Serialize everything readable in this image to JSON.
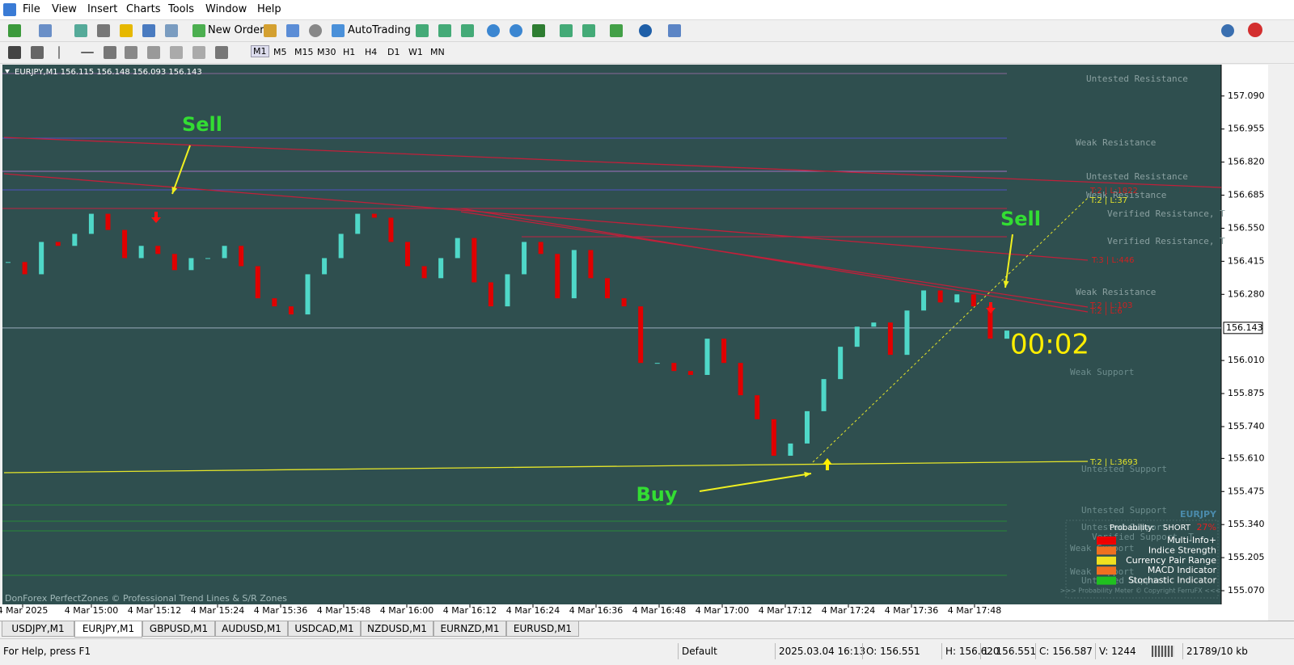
{
  "menu": [
    "File",
    "View",
    "Insert",
    "Charts",
    "Tools",
    "Window",
    "Help"
  ],
  "toolbar": {
    "new_order": "New Order",
    "autotrading": "AutoTrading",
    "timeframes": [
      "M1",
      "M5",
      "M15",
      "M30",
      "H1",
      "H4",
      "D1",
      "W1",
      "MN"
    ]
  },
  "chart_data": {
    "type": "candlestick",
    "title": "EURJPY,M1 156.115 156.148 156.093 156.143",
    "x_labels": [
      "4 Mar 2025",
      "4 Mar 15:00",
      "4 Mar 15:12",
      "4 Mar 15:24",
      "4 Mar 15:36",
      "4 Mar 15:48",
      "4 Mar 16:00",
      "4 Mar 16:12",
      "4 Mar 16:24",
      "4 Mar 16:36",
      "4 Mar 16:48",
      "4 Mar 17:00",
      "4 Mar 17:12",
      "4 Mar 17:24",
      "4 Mar 17:36",
      "4 Mar 17:48"
    ],
    "closes": [
      156.412,
      156.362,
      156.494,
      156.478,
      156.527,
      156.609,
      156.543,
      156.428,
      156.478,
      156.445,
      156.379,
      156.428,
      156.428,
      156.478,
      156.395,
      156.264,
      156.231,
      156.198,
      156.362,
      156.428,
      156.527,
      156.609,
      156.593,
      156.494,
      156.395,
      156.346,
      156.428,
      156.51,
      156.329,
      156.231,
      156.362,
      156.494,
      156.445,
      156.264,
      156.461,
      156.346,
      156.264,
      156.231,
      156.0,
      156.0,
      155.967,
      155.951,
      156.099,
      156.0,
      155.868,
      155.77,
      155.621,
      155.671,
      155.803,
      155.934,
      156.066,
      156.148,
      156.165,
      156.033,
      156.214,
      156.296,
      156.247,
      156.28,
      156.231,
      156.099,
      156.132
    ],
    "up_color": "#4fd8c8",
    "down_color": "#e00000",
    "ylim": [
      155.014,
      157.218
    ],
    "yticks": [
      {
        "value": 157.09,
        "label": "157.090"
      },
      {
        "value": 156.955,
        "label": "156.955"
      },
      {
        "value": 156.82,
        "label": "156.820"
      },
      {
        "value": 156.685,
        "label": "156.685"
      },
      {
        "value": 156.55,
        "label": "156.550"
      },
      {
        "value": 156.415,
        "label": "156.415"
      },
      {
        "value": 156.28,
        "label": "156.280"
      },
      {
        "value": 156.01,
        "label": "156.010"
      },
      {
        "value": 155.875,
        "label": "155.875"
      },
      {
        "value": 155.74,
        "label": "155.740"
      },
      {
        "value": 155.61,
        "label": "155.610"
      },
      {
        "value": 155.475,
        "label": "155.475"
      },
      {
        "value": 155.34,
        "label": "155.340"
      },
      {
        "value": 155.205,
        "label": "155.205"
      },
      {
        "value": 155.07,
        "label": "155.070"
      }
    ],
    "current_price": {
      "value": 156.143,
      "label": "156.143"
    },
    "annotations": [
      "Sell",
      "Sell",
      "Buy",
      "00:02",
      "T:2 | L:1822",
      "T:2 | L:37",
      "T:3 | L:446",
      "T:2 | L:103",
      "T:2 | L:6",
      "T:2 | L:3693"
    ],
    "zones": [
      "Untested Resistance",
      "Weak Resistance",
      "Untested Resistance",
      "Weak Resistance",
      "Verified Resistance, T",
      "Verified Resistance, T",
      "Weak Resistance",
      "Weak Support",
      "Untested Support",
      "Untested Support",
      "Untested Support",
      "Verified Support, T",
      "Weak Support",
      "Weak Support",
      "Untested Support"
    ],
    "footer_text": "DonForex PerfectZones © Professional Trend Lines & S/R Zones"
  },
  "panel": {
    "symbol": "EURJPY",
    "probability_label": "Probability:",
    "direction": "SHORT",
    "percent": "27%",
    "items": [
      "Multi-Info+",
      "Indice Strength",
      "Currency Pair Range",
      "MACD Indicator",
      "Stochastic Indicator"
    ],
    "copyright": ">>> Probability Meter © Copyright FerruFX <<<"
  },
  "tabs": [
    "USDJPY,M1",
    "EURJPY,M1",
    "GBPUSD,M1",
    "AUDUSD,M1",
    "USDCAD,M1",
    "NZDUSD,M1",
    "EURNZD,M1",
    "EURUSD,M1"
  ],
  "status": [
    "For Help, press F1",
    "Default",
    "2025.03.04 16:13",
    "O: 156.551",
    "H: 156.620",
    "L: 156.551",
    "C: 156.587",
    "V: 1244",
    "21789/10 kb"
  ]
}
